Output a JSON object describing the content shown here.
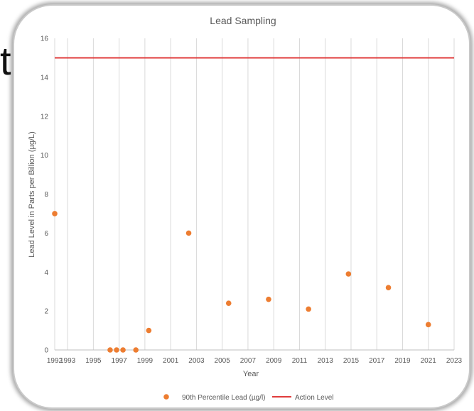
{
  "background_text": "t",
  "chart_data": {
    "type": "scatter",
    "title": "Lead Sampling",
    "xlabel": "Year",
    "ylabel": "Lead Level in Parts per Billion (µg/L)",
    "xlim": [
      1992,
      2023
    ],
    "ylim": [
      0,
      16
    ],
    "x_ticks": [
      "1992",
      "1993",
      "1995",
      "1997",
      "1999",
      "2001",
      "2003",
      "2005",
      "2007",
      "2009",
      "2011",
      "2013",
      "2015",
      "2017",
      "2019",
      "2021",
      "2023"
    ],
    "y_ticks": [
      "0",
      "2",
      "4",
      "6",
      "8",
      "10",
      "12",
      "14",
      "16"
    ],
    "grid": "vertical",
    "legend_position": "bottom",
    "series": [
      {
        "name": "90th Percentile Lead (µg/l)",
        "type": "scatter",
        "color": "#ed7d31",
        "points": [
          {
            "x": 1992,
            "y": 7.0
          },
          {
            "x": 1996.3,
            "y": 0
          },
          {
            "x": 1996.8,
            "y": 0
          },
          {
            "x": 1997.3,
            "y": 0
          },
          {
            "x": 1998.3,
            "y": 0
          },
          {
            "x": 1999.3,
            "y": 1.0
          },
          {
            "x": 2002.4,
            "y": 6.0
          },
          {
            "x": 2005.5,
            "y": 2.4
          },
          {
            "x": 2008.6,
            "y": 2.6
          },
          {
            "x": 2011.7,
            "y": 2.1
          },
          {
            "x": 2014.8,
            "y": 3.9
          },
          {
            "x": 2017.9,
            "y": 3.2
          },
          {
            "x": 2021.0,
            "y": 1.3
          }
        ]
      },
      {
        "name": "Action Level",
        "type": "line",
        "color": "#e03c3c",
        "value": 15
      }
    ]
  }
}
